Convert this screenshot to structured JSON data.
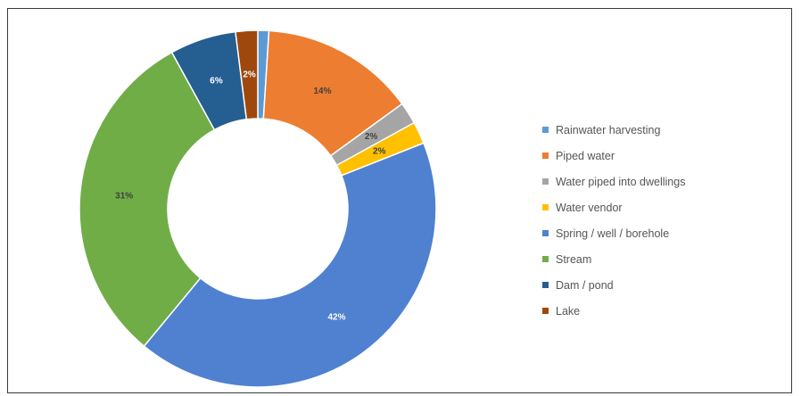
{
  "chart_data": {
    "type": "pie",
    "variant": "donut",
    "title": "",
    "legend_position": "right",
    "slices": [
      {
        "name": "Rainwater harvesting",
        "value": 1,
        "label": "",
        "color": "#5b9bd5",
        "label_color": "#333333"
      },
      {
        "name": "Piped water",
        "value": 14,
        "label": "14%",
        "color": "#ed7d31",
        "label_color": "#404040"
      },
      {
        "name": "Water piped into dwellings",
        "value": 2,
        "label": "2%",
        "color": "#a5a5a5",
        "label_color": "#404040"
      },
      {
        "name": "Water vendor",
        "value": 2,
        "label": "2%",
        "color": "#ffc000",
        "label_color": "#404040"
      },
      {
        "name": "Spring / well / borehole",
        "value": 42,
        "label": "42%",
        "color": "#4f81d0",
        "label_color": "#ffffff"
      },
      {
        "name": "Stream",
        "value": 31,
        "label": "31%",
        "color": "#70ad47",
        "label_color": "#404040"
      },
      {
        "name": "Dam / pond",
        "value": 6,
        "label": "6%",
        "color": "#255e91",
        "label_color": "#ffffff"
      },
      {
        "name": "Lake",
        "value": 2,
        "label": "2%",
        "color": "#9e480e",
        "label_color": "#ffffff"
      }
    ]
  }
}
